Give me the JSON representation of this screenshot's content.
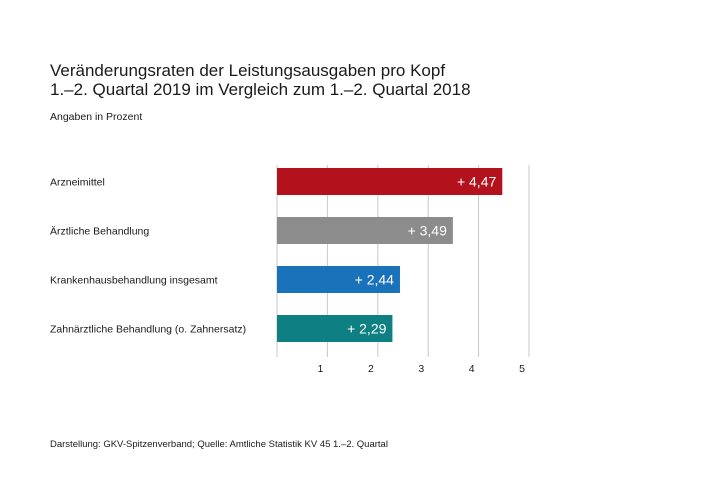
{
  "header": {
    "title": "Veränderungsraten der Leistungsausgaben pro Kopf",
    "subtitle": "1.–2. Quartal 2019 im Vergleich zum 1.–2. Quartal 2018",
    "unit_note": "Angaben in Prozent"
  },
  "footer": {
    "source": "Darstellung: GKV-Spitzenverband; Quelle: Amtliche Statistik KV 45 1.–2. Quartal"
  },
  "chart_data": {
    "type": "bar",
    "orientation": "horizontal",
    "title": "Veränderungsraten der Leistungsausgaben pro Kopf",
    "subtitle": "1.–2. Quartal 2019 im Vergleich zum 1.–2. Quartal 2018",
    "xlabel": "",
    "ylabel": "",
    "unit": "Angaben in Prozent",
    "categories": [
      "Arzneimittel",
      "Ärztliche Behandlung",
      "Krankenhausbehandlung insgesamt",
      "Zahnärztliche Behandlung (o. Zahnersatz)"
    ],
    "values": [
      4.47,
      3.49,
      2.44,
      2.29
    ],
    "value_labels": [
      "+ 4,47",
      "+ 3,49",
      "+ 2,44",
      "+ 2,29"
    ],
    "colors": [
      "#b3121c",
      "#8c8c8c",
      "#1a73ba",
      "#0e7f83"
    ],
    "xlim": [
      0,
      5
    ],
    "ticks": [
      1,
      2,
      3,
      4,
      5
    ],
    "grid": true,
    "legend": "none"
  }
}
